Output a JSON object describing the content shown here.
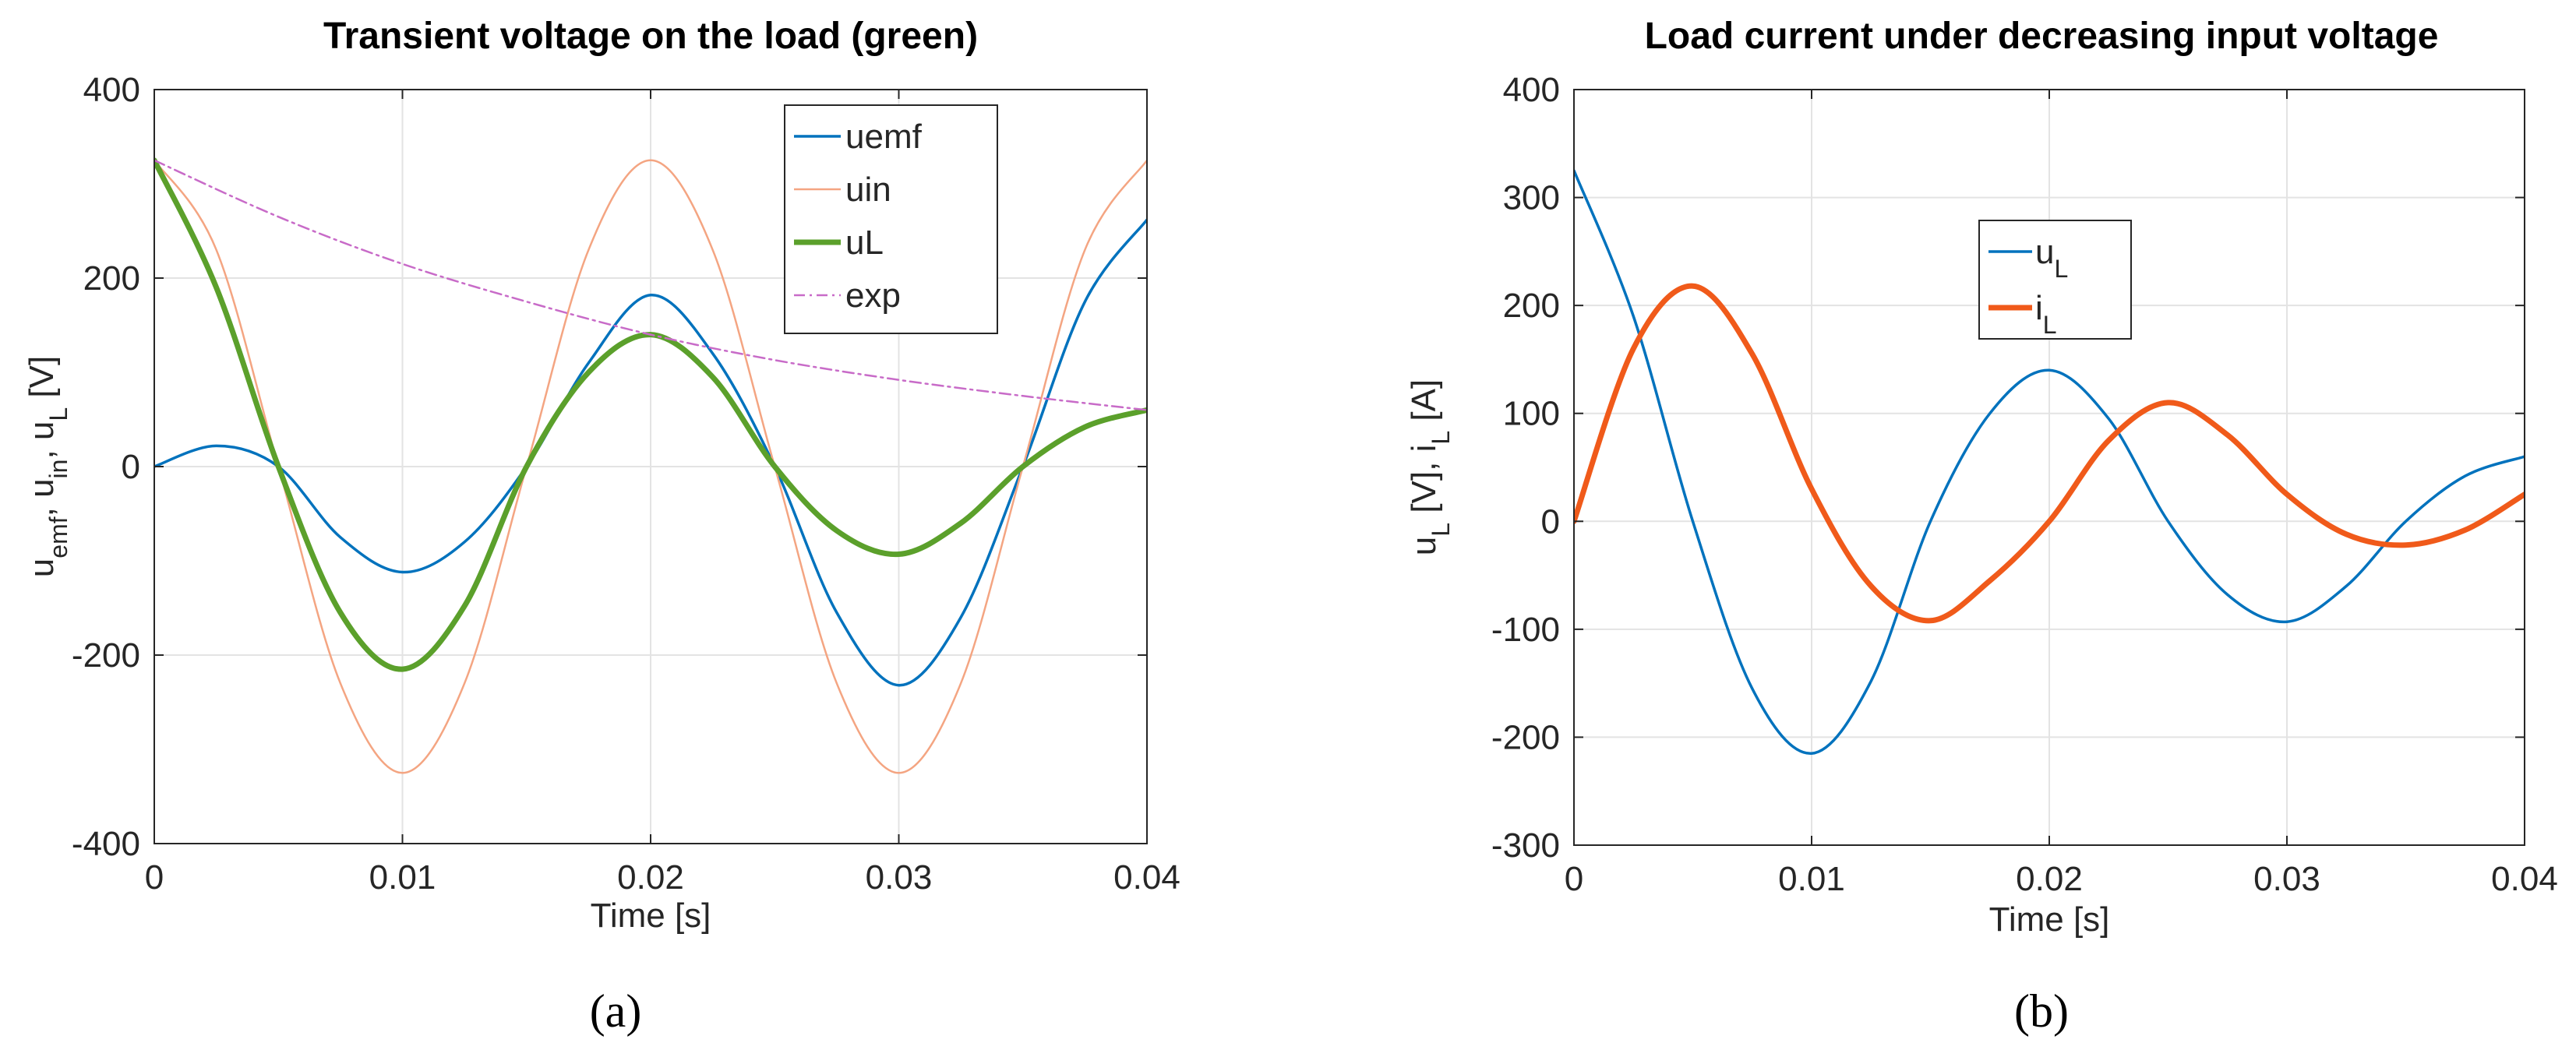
{
  "chart_data": [
    {
      "type": "line",
      "panel_label": "(a)",
      "title": "Transient voltage on the load (green)",
      "xlabel": "Time [s]",
      "ylabel_parts": [
        {
          "text": "u"
        },
        {
          "text": "emf",
          "sub": true
        },
        {
          "text": ", u"
        },
        {
          "text": "in",
          "sub": true
        },
        {
          "text": ", u"
        },
        {
          "text": "L",
          "sub": true
        },
        {
          "text": "  [V]"
        }
      ],
      "xlim": [
        0,
        0.04
      ],
      "ylim": [
        -400,
        400
      ],
      "xticks": [
        0,
        0.01,
        0.02,
        0.03,
        0.04
      ],
      "xtick_labels": [
        "0",
        "0.01",
        "0.02",
        "0.03",
        "0.04"
      ],
      "yticks": [
        -400,
        -200,
        0,
        200,
        400
      ],
      "ytick_labels": [
        "-400",
        "-200",
        "0",
        "200",
        "400"
      ],
      "grid": true,
      "legend_position": "top-right",
      "series": [
        {
          "name": "uemf",
          "label_parts": [
            {
              "text": "uemf"
            }
          ],
          "color": "#0072BD",
          "dash": "solid",
          "emphasis": "normal",
          "x": [
            0,
            0.0025,
            0.005,
            0.0075,
            0.01,
            0.0125,
            0.015,
            0.0175,
            0.02,
            0.0225,
            0.025,
            0.0275,
            0.03,
            0.0325,
            0.035,
            0.0375,
            0.04
          ],
          "y": [
            0,
            22,
            0,
            -75,
            -112,
            -80,
            0,
            110,
            182,
            120,
            0,
            -155,
            -232,
            -160,
            0,
            175,
            262
          ]
        },
        {
          "name": "uin",
          "label_parts": [
            {
              "text": "uin"
            }
          ],
          "color": "#F4A582",
          "dash": "solid",
          "emphasis": "thin",
          "x": [
            0,
            0.0025,
            0.005,
            0.0075,
            0.01,
            0.0125,
            0.015,
            0.0175,
            0.02,
            0.0225,
            0.025,
            0.0275,
            0.03,
            0.0325,
            0.035,
            0.0375,
            0.04
          ],
          "y": [
            325,
            230,
            0,
            -230,
            -325,
            -230,
            0,
            230,
            325,
            230,
            0,
            -230,
            -325,
            -230,
            0,
            230,
            325
          ]
        },
        {
          "name": "uL",
          "label_parts": [
            {
              "text": "uL"
            }
          ],
          "color": "#5BA02B",
          "dash": "solid",
          "emphasis": "bold",
          "x": [
            0,
            0.0025,
            0.005,
            0.0075,
            0.01,
            0.0125,
            0.015,
            0.0175,
            0.02,
            0.0225,
            0.025,
            0.0275,
            0.03,
            0.0325,
            0.035,
            0.0375,
            0.04
          ],
          "y": [
            325,
            190,
            0,
            -155,
            -215,
            -148,
            0,
            100,
            140,
            95,
            0,
            -68,
            -93,
            -60,
            0,
            42,
            60
          ]
        },
        {
          "name": "exp",
          "label_parts": [
            {
              "text": "exp"
            }
          ],
          "color": "#C86BC8",
          "dash": "dashdot",
          "emphasis": "thin",
          "x": [
            0,
            0.005,
            0.01,
            0.015,
            0.02,
            0.025,
            0.03,
            0.035,
            0.04
          ],
          "y": [
            325,
            265,
            215,
            175,
            140,
            113,
            92,
            75,
            60
          ]
        }
      ]
    },
    {
      "type": "line",
      "panel_label": "(b)",
      "title": "Load current under decreasing input voltage",
      "xlabel": "Time [s]",
      "ylabel_parts": [
        {
          "text": "u"
        },
        {
          "text": "L",
          "sub": true
        },
        {
          "text": " [V], i"
        },
        {
          "text": "L",
          "sub": true
        },
        {
          "text": " [A]"
        }
      ],
      "xlim": [
        0,
        0.04
      ],
      "ylim": [
        -300,
        400
      ],
      "xticks": [
        0,
        0.01,
        0.02,
        0.03,
        0.04
      ],
      "xtick_labels": [
        "0",
        "0.01",
        "0.02",
        "0.03",
        "0.04"
      ],
      "yticks": [
        -300,
        -200,
        -100,
        0,
        100,
        200,
        300,
        400
      ],
      "ytick_labels": [
        "-300",
        "-200",
        "-100",
        "0",
        "100",
        "200",
        "300",
        "400"
      ],
      "grid": true,
      "legend_position": "top-right",
      "series": [
        {
          "name": "u_L",
          "label_parts": [
            {
              "text": "u"
            },
            {
              "text": "L",
              "sub": true
            }
          ],
          "color": "#0072BD",
          "dash": "solid",
          "emphasis": "normal",
          "x": [
            0,
            0.0025,
            0.005,
            0.0075,
            0.01,
            0.0125,
            0.015,
            0.0175,
            0.02,
            0.0225,
            0.025,
            0.0275,
            0.03,
            0.0325,
            0.035,
            0.0375,
            0.04
          ],
          "y": [
            325,
            190,
            0,
            -155,
            -215,
            -148,
            0,
            100,
            140,
            95,
            0,
            -68,
            -93,
            -60,
            0,
            42,
            60
          ]
        },
        {
          "name": "i_L",
          "label_parts": [
            {
              "text": "i"
            },
            {
              "text": "L",
              "sub": true
            }
          ],
          "color": "#F05A1A",
          "dash": "solid",
          "emphasis": "bold",
          "x": [
            0,
            0.0025,
            0.005,
            0.0075,
            0.01,
            0.0125,
            0.015,
            0.0175,
            0.02,
            0.0225,
            0.025,
            0.0275,
            0.03,
            0.0325,
            0.035,
            0.0375,
            0.04
          ],
          "y": [
            0,
            160,
            218,
            155,
            30,
            -60,
            -92,
            -55,
            0,
            75,
            110,
            80,
            25,
            -12,
            -22,
            -8,
            25
          ]
        }
      ]
    }
  ]
}
